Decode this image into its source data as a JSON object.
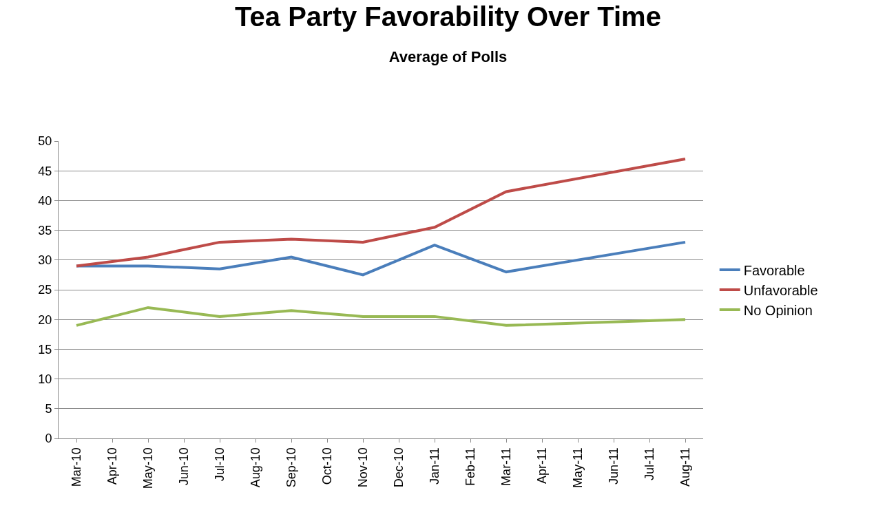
{
  "chart_data": {
    "type": "line",
    "title": "Tea Party Favorability Over Time",
    "subtitle": "Average of Polls",
    "categories": [
      "Mar-10",
      "Apr-10",
      "May-10",
      "Jun-10",
      "Jul-10",
      "Aug-10",
      "Sep-10",
      "Oct-10",
      "Nov-10",
      "Dec-10",
      "Jan-11",
      "Feb-11",
      "Mar-11",
      "Apr-11",
      "May-11",
      "Jun-11",
      "Jul-11",
      "Aug-11"
    ],
    "series": [
      {
        "name": "Favorable",
        "color": "#4a7ebb",
        "values": [
          29,
          null,
          29,
          null,
          28.5,
          null,
          30.5,
          null,
          27.5,
          null,
          32.5,
          null,
          28,
          null,
          null,
          null,
          null,
          33
        ]
      },
      {
        "name": "Unfavorable",
        "color": "#be4b48",
        "values": [
          29,
          null,
          30.5,
          null,
          33,
          null,
          33.5,
          null,
          33,
          null,
          35.5,
          null,
          41.5,
          null,
          null,
          null,
          null,
          47
        ]
      },
      {
        "name": "No Opinion",
        "color": "#98b954",
        "values": [
          19,
          null,
          22,
          null,
          20.5,
          null,
          21.5,
          null,
          20.5,
          null,
          20.5,
          null,
          19,
          null,
          null,
          null,
          null,
          20
        ]
      }
    ],
    "ylim": [
      0,
      50
    ],
    "yticks": [
      0,
      5,
      10,
      15,
      20,
      25,
      30,
      35,
      40,
      45,
      50
    ],
    "grid": "y",
    "legend": "right",
    "marker": "none",
    "line_style": "solid"
  }
}
